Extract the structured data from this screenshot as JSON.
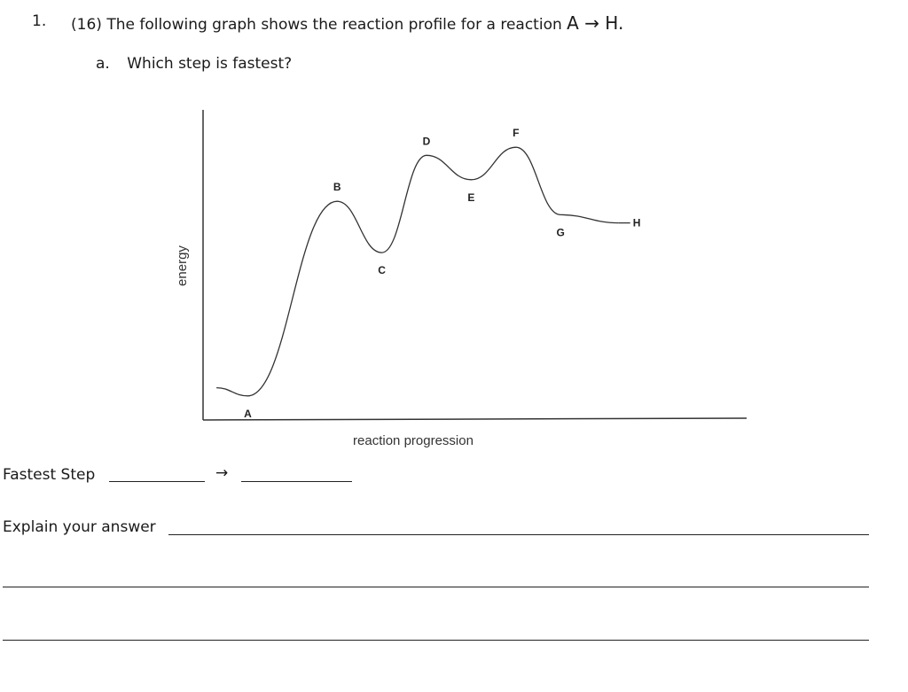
{
  "question": {
    "number": "1.",
    "points": "(16)",
    "text": "The following graph shows the reaction profile for a reaction",
    "reaction": "A → H."
  },
  "sub_question": {
    "letter": "a.",
    "text": "Which step is fastest?"
  },
  "chart_data": {
    "type": "line",
    "title": "",
    "xlabel": "reaction progression",
    "ylabel": "energy",
    "points": [
      {
        "label": "A",
        "kind": "minimum",
        "x": 1,
        "energy": 5
      },
      {
        "label": "B",
        "kind": "maximum",
        "x": 3,
        "energy": 77
      },
      {
        "label": "C",
        "kind": "minimum",
        "x": 4,
        "energy": 58
      },
      {
        "label": "D",
        "kind": "maximum",
        "x": 5,
        "energy": 94
      },
      {
        "label": "E",
        "kind": "minimum",
        "x": 6,
        "energy": 85
      },
      {
        "label": "F",
        "kind": "maximum",
        "x": 7,
        "energy": 97
      },
      {
        "label": "G",
        "kind": "minimum",
        "x": 8,
        "energy": 72
      },
      {
        "label": "H",
        "kind": "end",
        "x": 9.3,
        "energy": 69
      }
    ],
    "ticks": "none",
    "grid": false,
    "legend": "none",
    "line_color": "#333333"
  },
  "answer": {
    "fastest_label": "Fastest Step",
    "arrow": "→",
    "explain_label": "Explain your answer"
  }
}
